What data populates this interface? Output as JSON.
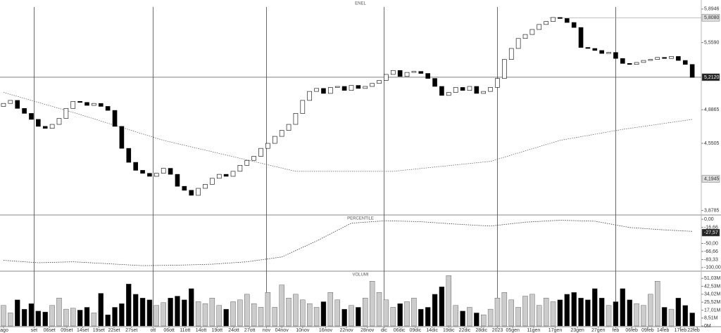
{
  "chart_data": [
    {
      "type": "candlestick",
      "title": "ENEL",
      "open": [
        4.92,
        4.95,
        4.98,
        4.9,
        4.85,
        4.79,
        4.72,
        4.7,
        4.74,
        4.8,
        4.9,
        4.97,
        4.96,
        4.93,
        4.95,
        4.92,
        4.88,
        4.72,
        4.5,
        4.36,
        4.28,
        4.25,
        4.22,
        4.25,
        4.3,
        4.24,
        4.12,
        4.08,
        4.03,
        4.1,
        4.14,
        4.2,
        4.24,
        4.22,
        4.27,
        4.33,
        4.38,
        4.42,
        4.5,
        4.55,
        4.62,
        4.68,
        4.74,
        4.85,
        4.98,
        5.07,
        5.1,
        5.05,
        5.11,
        5.12,
        5.08,
        5.13,
        5.1,
        5.12,
        5.15,
        5.18,
        5.24,
        5.28,
        5.22,
        5.26,
        5.27,
        5.25,
        5.2,
        5.12,
        5.03,
        5.06,
        5.11,
        5.08,
        5.12,
        5.05,
        5.07,
        5.11,
        5.2,
        5.39,
        5.5,
        5.6,
        5.64,
        5.69,
        5.74,
        5.77,
        5.81,
        5.8,
        5.76,
        5.71,
        5.51,
        5.5,
        5.48,
        5.45,
        5.46,
        5.4,
        5.35,
        5.34,
        5.36,
        5.38,
        5.39,
        5.41,
        5.4,
        5.42,
        5.38,
        5.34
      ],
      "close": [
        4.95,
        4.98,
        4.9,
        4.85,
        4.79,
        4.72,
        4.7,
        4.74,
        4.8,
        4.9,
        4.97,
        4.96,
        4.93,
        4.95,
        4.92,
        4.88,
        4.72,
        4.5,
        4.36,
        4.28,
        4.25,
        4.22,
        4.25,
        4.3,
        4.24,
        4.12,
        4.08,
        4.03,
        4.1,
        4.14,
        4.2,
        4.24,
        4.22,
        4.27,
        4.33,
        4.38,
        4.42,
        4.5,
        4.55,
        4.62,
        4.68,
        4.74,
        4.85,
        4.98,
        5.07,
        5.1,
        5.05,
        5.11,
        5.12,
        5.08,
        5.13,
        5.1,
        5.12,
        5.15,
        5.18,
        5.24,
        5.28,
        5.22,
        5.26,
        5.27,
        5.25,
        5.2,
        5.12,
        5.03,
        5.06,
        5.11,
        5.08,
        5.12,
        5.05,
        5.07,
        5.11,
        5.2,
        5.39,
        5.5,
        5.6,
        5.64,
        5.69,
        5.74,
        5.77,
        5.81,
        5.8,
        5.76,
        5.71,
        5.51,
        5.5,
        5.48,
        5.45,
        5.46,
        5.4,
        5.35,
        5.34,
        5.36,
        5.38,
        5.39,
        5.41,
        5.4,
        5.42,
        5.38,
        5.34,
        5.21
      ],
      "moving_average": {
        "x": [
          0,
          10,
          23,
          42,
          56,
          70,
          80,
          89,
          99
        ],
        "values": [
          5.06,
          4.86,
          4.58,
          4.27,
          4.27,
          4.37,
          4.58,
          4.69,
          4.79
        ]
      },
      "xlim": [
        -0.5,
        100.2
      ],
      "ylim": [
        3.84,
        5.95
      ],
      "yticks": [
        {
          "value": 5.8946,
          "label": "5,8946"
        },
        {
          "value": 5.559,
          "label": "5,5590"
        },
        {
          "value": 4.8865,
          "label": "4,8865"
        },
        {
          "value": 4.5505,
          "label": "4,5505"
        },
        {
          "value": 3.8785,
          "label": "3,8785"
        }
      ],
      "markers": [
        {
          "value": 5.808,
          "label": "5,8080"
        },
        {
          "value": 5.212,
          "label": "5,2120"
        },
        {
          "value": 4.1945,
          "label": "4,1945"
        }
      ],
      "vlines": [
        4.4,
        21.5,
        37.8,
        54.7,
        71,
        88
      ]
    },
    {
      "type": "line",
      "title": "PERCENTILE",
      "x": [
        0,
        5,
        10,
        15,
        20,
        25,
        30,
        35,
        40,
        45,
        50,
        55,
        60,
        65,
        70,
        75,
        80,
        85,
        90,
        95,
        99
      ],
      "values": [
        -85,
        -90,
        -88,
        -92,
        -96,
        -95,
        -93,
        -88,
        -78,
        -45,
        -8,
        -3,
        -5,
        -10,
        -14,
        -6,
        -2,
        -4,
        -17,
        -22,
        -25
      ],
      "ylim": [
        -106,
        6
      ],
      "yticks": [
        {
          "value": 0,
          "label": "0,00"
        },
        {
          "value": -16.66,
          "label": "-16,66"
        },
        {
          "value": -50,
          "label": "-50,00"
        },
        {
          "value": -66.66,
          "label": "-66,66"
        },
        {
          "value": -83.33,
          "label": "-83,33"
        },
        {
          "value": -100,
          "label": "-100,00"
        }
      ],
      "markers": [
        {
          "value": -27.57,
          "label": "-27,57"
        }
      ]
    },
    {
      "type": "bar",
      "title": "VOLUMI",
      "values": [
        22,
        14,
        28,
        18,
        24,
        16,
        15,
        22,
        30,
        18,
        19,
        17,
        20,
        14,
        35,
        12,
        20,
        24,
        45,
        34,
        30,
        28,
        22,
        25,
        30,
        32,
        28,
        40,
        26,
        24,
        30,
        22,
        18,
        26,
        28,
        34,
        24,
        20,
        36,
        20,
        44,
        30,
        34,
        28,
        24,
        20,
        26,
        36,
        28,
        18,
        22,
        20,
        30,
        48,
        36,
        28,
        20,
        24,
        26,
        30,
        18,
        20,
        34,
        42,
        54,
        22,
        16,
        20,
        14,
        12,
        18,
        30,
        36,
        28,
        20,
        32,
        34,
        22,
        30,
        26,
        28,
        34,
        36,
        30,
        28,
        40,
        30,
        22,
        26,
        40,
        28,
        24,
        22,
        34,
        48,
        20,
        18,
        30,
        22,
        14
      ],
      "ylim": [
        0,
        58
      ],
      "yticks": [
        {
          "value": 51.03,
          "label": "51,03M"
        },
        {
          "value": 42.53,
          "label": "42,53M"
        },
        {
          "value": 34.02,
          "label": "34,02M"
        },
        {
          "value": 25.52,
          "label": "25,52M"
        },
        {
          "value": 17.01,
          "label": "17,01M"
        },
        {
          "value": 8.51,
          "label": "8,51M"
        },
        {
          "value": 0,
          "label": "0M"
        }
      ],
      "xticks": [
        {
          "value": 0,
          "label": "ago"
        },
        {
          "value": 4.4,
          "label": "set"
        },
        {
          "value": 6.6,
          "label": "06set"
        },
        {
          "value": 9.1,
          "label": "09set"
        },
        {
          "value": 11.4,
          "label": "14set"
        },
        {
          "value": 13.7,
          "label": "19set"
        },
        {
          "value": 15.9,
          "label": "22set"
        },
        {
          "value": 18.4,
          "label": "27set"
        },
        {
          "value": 21.5,
          "label": "ott"
        },
        {
          "value": 23.8,
          "label": "06ott"
        },
        {
          "value": 26.1,
          "label": "11ott"
        },
        {
          "value": 28.4,
          "label": "14ott"
        },
        {
          "value": 30.7,
          "label": "19ott"
        },
        {
          "value": 33.1,
          "label": "24ott"
        },
        {
          "value": 35.4,
          "label": "27ott"
        },
        {
          "value": 37.8,
          "label": "nov"
        },
        {
          "value": 40,
          "label": "04nov"
        },
        {
          "value": 43,
          "label": "10nov"
        },
        {
          "value": 46.3,
          "label": "16nov"
        },
        {
          "value": 49.3,
          "label": "22nov"
        },
        {
          "value": 52.3,
          "label": "28nov"
        },
        {
          "value": 54.7,
          "label": "dic"
        },
        {
          "value": 56.9,
          "label": "06dic"
        },
        {
          "value": 59.2,
          "label": "09dic"
        },
        {
          "value": 61.6,
          "label": "14dic"
        },
        {
          "value": 64,
          "label": "19dic"
        },
        {
          "value": 66.3,
          "label": "22dic"
        },
        {
          "value": 68.7,
          "label": "28dic"
        },
        {
          "value": 71,
          "label": "2023"
        },
        {
          "value": 73.2,
          "label": "05gen"
        },
        {
          "value": 76.2,
          "label": "11gen"
        },
        {
          "value": 79.3,
          "label": "17gen"
        },
        {
          "value": 82.5,
          "label": "23gen"
        },
        {
          "value": 85.5,
          "label": "27gen"
        },
        {
          "value": 88,
          "label": "feb"
        },
        {
          "value": 90.3,
          "label": "06feb"
        },
        {
          "value": 92.6,
          "label": "09feb"
        },
        {
          "value": 94.8,
          "label": "14feb"
        },
        {
          "value": 97.3,
          "label": "17feb"
        },
        {
          "value": 99.7,
          "label": "22feb"
        }
      ]
    }
  ]
}
